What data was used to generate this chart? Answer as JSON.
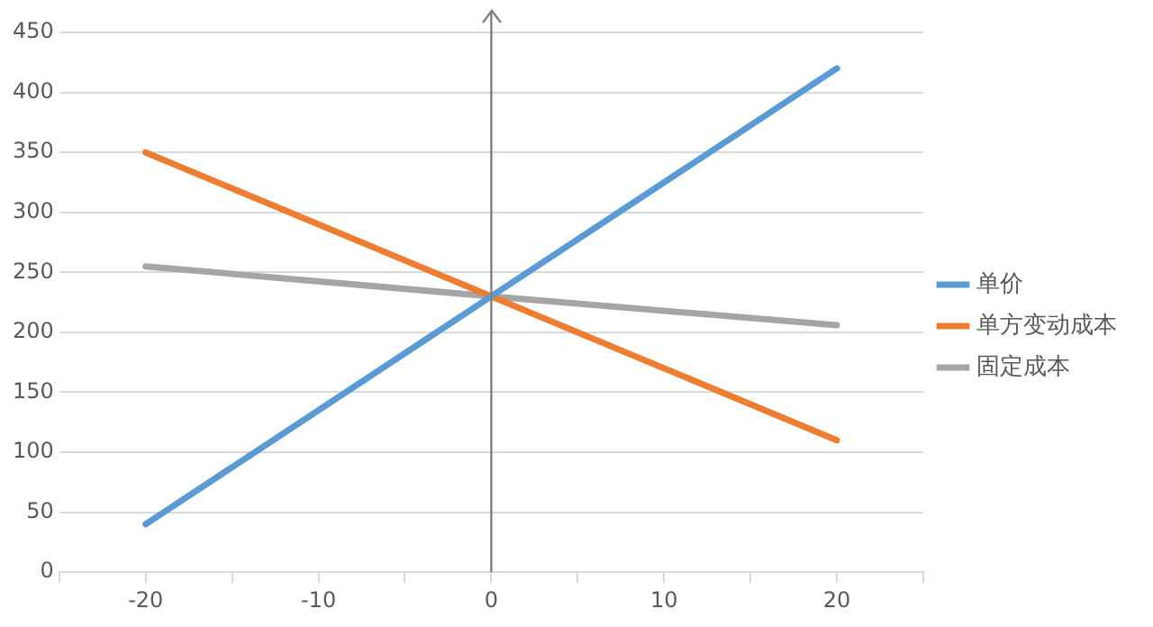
{
  "chart_data": {
    "type": "line",
    "x": [
      -20,
      0,
      20
    ],
    "series": [
      {
        "name": "单价",
        "color": "#5b9bd5",
        "values": [
          40,
          230,
          420
        ]
      },
      {
        "name": "单方变动成本",
        "color": "#ed7d31",
        "values": [
          350,
          230,
          110
        ]
      },
      {
        "name": "固定成本",
        "color": "#a5a5a5",
        "values": [
          255,
          230,
          206
        ]
      }
    ],
    "xlim": [
      -25,
      25
    ],
    "xticks": [
      {
        "value": -25,
        "label": null
      },
      -20,
      {
        "value": -15,
        "label": null
      },
      -10,
      {
        "value": -5,
        "label": null
      },
      0,
      {
        "value": 5,
        "label": null
      },
      10,
      {
        "value": 15,
        "label": null
      },
      20,
      {
        "value": 25,
        "label": null
      }
    ],
    "ylim": [
      0,
      450
    ],
    "yticks": [
      0,
      50,
      100,
      150,
      200,
      250,
      300,
      350,
      400,
      450
    ],
    "ref_lines": [
      {
        "axis": "x",
        "value": 0,
        "color": "#808080"
      }
    ],
    "grid": "y",
    "legend": "right",
    "marker": "none",
    "line_style": "solid"
  }
}
